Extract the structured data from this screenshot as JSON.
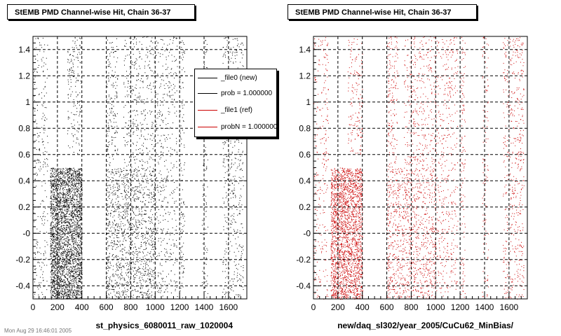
{
  "chart_data": [
    {
      "type": "scatter",
      "title": "StEMB PMD Channel-wise Hit, Chain 36-37",
      "xlabel": "st_physics_6080011_raw_1020004",
      "ylabel": "",
      "xlim": [
        0,
        1750
      ],
      "ylim": [
        -0.5,
        1.5
      ],
      "x_ticks": [
        0,
        200,
        400,
        600,
        800,
        1000,
        1200,
        1400,
        1600
      ],
      "x_tick_labels": [
        "0",
        "200",
        "400",
        "600",
        "800",
        "1000",
        "1200",
        "1400",
        "1600"
      ],
      "y_ticks": [
        -0.4,
        -0.2,
        0,
        0.2,
        0.4,
        0.6,
        0.8,
        1,
        1.2,
        1.4
      ],
      "y_tick_labels": [
        "-0.4",
        "-0.2",
        "-0",
        "0.2",
        "0.4",
        "0.6",
        "0.8",
        "1",
        "1.2",
        "1.4"
      ],
      "grid": true,
      "marker_color": "#000000",
      "density_regions": [
        {
          "x": [
            0,
            120
          ],
          "y": [
            -0.5,
            1.5
          ],
          "density": 0.35
        },
        {
          "x": [
            140,
            400
          ],
          "y": [
            -0.5,
            0.5
          ],
          "density": 4.0
        },
        {
          "x": [
            280,
            400
          ],
          "y": [
            0.6,
            1.5
          ],
          "density": 0.5
        },
        {
          "x": [
            600,
            1000
          ],
          "y": [
            -0.5,
            0.5
          ],
          "density": 1.1
        },
        {
          "x": [
            600,
            690
          ],
          "y": [
            0.5,
            1.5
          ],
          "density": 0.6
        },
        {
          "x": [
            740,
            1000
          ],
          "y": [
            0.5,
            1.5
          ],
          "density": 0.45
        },
        {
          "x": [
            1000,
            1180
          ],
          "y": [
            -0.5,
            1.5
          ],
          "density": 0.4
        },
        {
          "x": [
            1200,
            1240
          ],
          "y": [
            -0.5,
            1.5
          ],
          "density": 0.5
        },
        {
          "x": [
            1380,
            1430
          ],
          "y": [
            -0.5,
            1.5
          ],
          "density": 0.4
        },
        {
          "x": [
            1550,
            1720
          ],
          "y": [
            -0.5,
            1.5
          ],
          "density": 0.5
        }
      ],
      "legend": {
        "position": "top-right",
        "entries": [
          {
            "label": "_file0 (new)",
            "color": "#000000"
          },
          {
            "label": "prob = 1.000000",
            "color": "#000000"
          },
          {
            "label": "_file1 (ref)",
            "color": "#cc0000"
          },
          {
            "label": "probN = 1.000000",
            "color": "#cc0000"
          }
        ]
      }
    },
    {
      "type": "scatter",
      "title": "StEMB PMD Channel-wise Hit, Chain 36-37",
      "xlabel": "new/daq_sl302/year_2005/CuCu62_MinBias/",
      "ylabel": "",
      "xlim": [
        0,
        1750
      ],
      "ylim": [
        -0.5,
        1.5
      ],
      "x_ticks": [
        0,
        200,
        400,
        600,
        800,
        1000,
        1200,
        1400,
        1600
      ],
      "x_tick_labels": [
        "0",
        "200",
        "400",
        "600",
        "800",
        "1000",
        "1200",
        "1400",
        "1600"
      ],
      "y_ticks": [
        -0.4,
        -0.2,
        0,
        0.2,
        0.4,
        0.6,
        0.8,
        1,
        1.2,
        1.4
      ],
      "y_tick_labels": [
        "-0.4",
        "-0.2",
        "-0",
        "0.2",
        "0.4",
        "0.6",
        "0.8",
        "1",
        "1.2",
        "1.4"
      ],
      "grid": true,
      "marker_color": "#cc0000",
      "density_regions": [
        {
          "x": [
            0,
            120
          ],
          "y": [
            -0.5,
            1.5
          ],
          "density": 0.35
        },
        {
          "x": [
            140,
            400
          ],
          "y": [
            -0.5,
            0.5
          ],
          "density": 3.0
        },
        {
          "x": [
            280,
            400
          ],
          "y": [
            0.6,
            1.5
          ],
          "density": 0.5
        },
        {
          "x": [
            600,
            1000
          ],
          "y": [
            -0.5,
            0.5
          ],
          "density": 0.9
        },
        {
          "x": [
            600,
            690
          ],
          "y": [
            0.5,
            1.5
          ],
          "density": 0.6
        },
        {
          "x": [
            740,
            1000
          ],
          "y": [
            0.5,
            1.5
          ],
          "density": 0.45
        },
        {
          "x": [
            1000,
            1180
          ],
          "y": [
            -0.5,
            1.5
          ],
          "density": 0.4
        },
        {
          "x": [
            1200,
            1240
          ],
          "y": [
            -0.5,
            1.5
          ],
          "density": 0.5
        },
        {
          "x": [
            1380,
            1430
          ],
          "y": [
            -0.5,
            1.5
          ],
          "density": 0.4
        },
        {
          "x": [
            1550,
            1720
          ],
          "y": [
            -0.5,
            1.5
          ],
          "density": 0.5
        }
      ]
    }
  ],
  "footer": {
    "stamp": "Mon Aug 29 16:46:01 2005"
  }
}
